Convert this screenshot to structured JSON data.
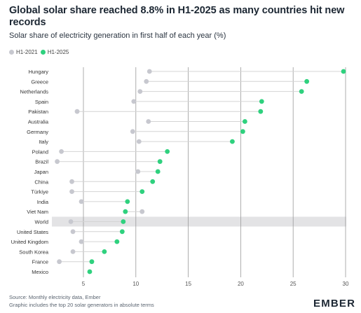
{
  "header": {
    "title": "Global solar share reached 8.8% in H1-2025 as many countries hit new records",
    "subtitle": "Solar share of electricity generation in first half of each year (%)"
  },
  "colors": {
    "h1_2021": "#c7c8cf",
    "h1_2025": "#2fd17e",
    "highlight": "#e3e3e5",
    "grid": "#9a9a9a",
    "connector": "#d4d4d4"
  },
  "legend": [
    {
      "label": "H1-2021",
      "color": "#c7c8cf"
    },
    {
      "label": "H1-2025",
      "color": "#2fd17e"
    }
  ],
  "chart_data": {
    "type": "scatter",
    "title": "Global solar share reached 8.8% in H1-2025 as many countries hit new records",
    "subtitle": "Solar share of electricity generation in first half of each year (%)",
    "xlim": [
      2.5,
      30
    ],
    "xticks": [
      5,
      10,
      15,
      20,
      25,
      30
    ],
    "highlight_category": "World",
    "grid": "vertical",
    "categories": [
      "Hungary",
      "Greece",
      "Netherlands",
      "Spain",
      "Pakistan",
      "Australia",
      "Germany",
      "Italy",
      "Poland",
      "Brazil",
      "Japan",
      "China",
      "Türkiye",
      "India",
      "Viet Nam",
      "World",
      "United States",
      "United Kingdom",
      "South Korea",
      "France",
      "Mexico"
    ],
    "series": [
      {
        "name": "H1-2021",
        "values": [
          11.3,
          11.0,
          10.4,
          9.8,
          4.4,
          11.2,
          9.7,
          10.3,
          2.9,
          2.5,
          10.2,
          3.9,
          3.9,
          4.8,
          10.6,
          3.8,
          4.0,
          4.8,
          4.0,
          2.7,
          null
        ]
      },
      {
        "name": "H1-2025",
        "values": [
          29.8,
          26.3,
          25.8,
          22.0,
          21.9,
          20.4,
          20.2,
          19.2,
          13.0,
          12.3,
          12.1,
          11.6,
          10.6,
          9.2,
          9.0,
          8.8,
          8.7,
          8.2,
          7.0,
          5.8,
          5.6
        ]
      }
    ]
  },
  "footer": {
    "source": "Source: Monthly electricity data, Ember",
    "note": "Graphic includes the top 20 solar generators in absolute terms"
  },
  "brand": {
    "logo": "EMBER"
  }
}
